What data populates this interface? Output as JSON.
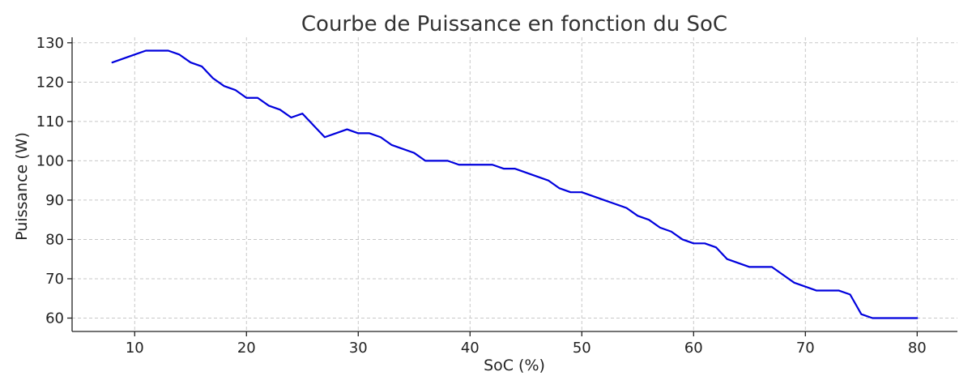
{
  "chart_data": {
    "type": "line",
    "title": "Courbe de Puissance en fonction du SoC",
    "xlabel": "SoC (%)",
    "ylabel": "Puissance (W)",
    "xlim": [
      4.4,
      83.6
    ],
    "ylim": [
      56.6,
      131.4
    ],
    "xticks": [
      10,
      20,
      30,
      40,
      50,
      60,
      70,
      80
    ],
    "yticks": [
      60,
      70,
      80,
      90,
      100,
      110,
      120,
      130
    ],
    "grid": true,
    "legend": "none",
    "line_color": "#0000dd",
    "series": [
      {
        "x": [
          8,
          9,
          10,
          11,
          12,
          13,
          14,
          15,
          16,
          17,
          18,
          19,
          20,
          21,
          22,
          23,
          24,
          25,
          26,
          27,
          28,
          29,
          30,
          31,
          32,
          33,
          34,
          35,
          36,
          37,
          38,
          39,
          40,
          41,
          42,
          43,
          44,
          45,
          46,
          47,
          48,
          49,
          50,
          51,
          52,
          53,
          54,
          55,
          56,
          57,
          58,
          59,
          60,
          61,
          62,
          63,
          64,
          65,
          66,
          67,
          68,
          69,
          70,
          71,
          72,
          73,
          74,
          75,
          76,
          77,
          78,
          79,
          80
        ],
        "values": [
          125,
          126,
          127,
          128,
          128,
          128,
          127,
          125,
          124,
          121,
          119,
          118,
          116,
          116,
          114,
          113,
          111,
          112,
          109,
          106,
          107,
          108,
          107,
          107,
          106,
          104,
          103,
          102,
          100,
          100,
          100,
          99,
          99,
          99,
          99,
          98,
          98,
          97,
          96,
          95,
          93,
          92,
          92,
          91,
          90,
          89,
          88,
          86,
          85,
          83,
          82,
          80,
          79,
          79,
          78,
          75,
          74,
          73,
          73,
          73,
          71,
          69,
          68,
          67,
          67,
          67,
          66,
          61,
          60,
          60,
          60,
          60,
          60
        ]
      }
    ]
  }
}
